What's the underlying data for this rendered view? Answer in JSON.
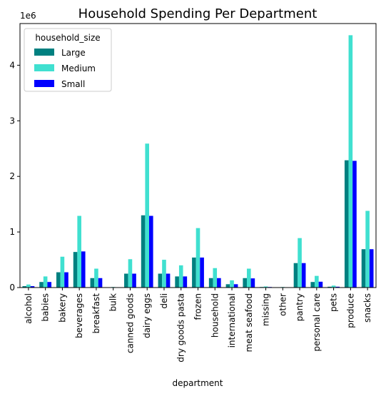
{
  "chart_data": {
    "type": "bar",
    "title": "Household Spending Per Department",
    "xlabel": "department",
    "ylabel": "",
    "y_offset_label": "1e6",
    "y_scale_divisor": 1000000,
    "ylim": [
      0,
      4750000
    ],
    "yticks": [
      0,
      1000000,
      2000000,
      3000000,
      4000000
    ],
    "ytick_labels": [
      "0",
      "1",
      "2",
      "3",
      "4"
    ],
    "grid": false,
    "legend_placement": "top-left",
    "legend_title": "household_size",
    "categories": [
      "alcohol",
      "babies",
      "bakery",
      "beverages",
      "breakfast",
      "bulk",
      "canned goods",
      "dairy eggs",
      "deli",
      "dry goods pasta",
      "frozen",
      "household",
      "international",
      "meat seafood",
      "missing",
      "other",
      "pantry",
      "personal care",
      "pets",
      "produce",
      "snacks"
    ],
    "series": [
      {
        "name": "Large",
        "color": "#008080",
        "values": [
          25000,
          100000,
          275000,
          640000,
          170000,
          5000,
          250000,
          1300000,
          250000,
          200000,
          540000,
          170000,
          60000,
          170000,
          10000,
          5000,
          440000,
          100000,
          15000,
          2290000,
          690000
        ]
      },
      {
        "name": "Medium",
        "color": "#40e0d0",
        "values": [
          55000,
          200000,
          555000,
          1290000,
          340000,
          10000,
          510000,
          2590000,
          500000,
          400000,
          1070000,
          350000,
          130000,
          340000,
          20000,
          10000,
          890000,
          210000,
          35000,
          4540000,
          1380000
        ]
      },
      {
        "name": "Small",
        "color": "#0000ff",
        "values": [
          25000,
          100000,
          275000,
          650000,
          170000,
          5000,
          250000,
          1290000,
          250000,
          200000,
          540000,
          170000,
          60000,
          165000,
          10000,
          5000,
          440000,
          105000,
          15000,
          2280000,
          690000
        ]
      }
    ]
  }
}
